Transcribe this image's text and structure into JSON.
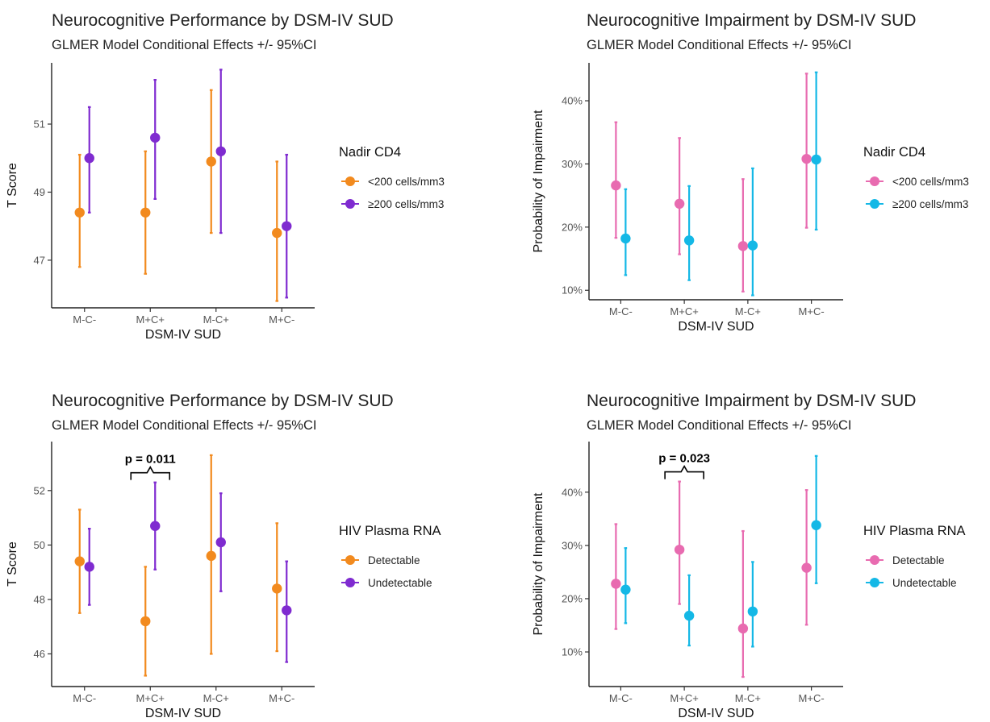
{
  "chart_data": [
    {
      "type": "scatter",
      "title": "Neurocognitive Performance by DSM-IV SUD",
      "subtitle": "GLMER Model Conditional Effects +/- 95%CI",
      "xlabel": "DSM-IV SUD",
      "ylabel": "T Score",
      "categories": [
        "M-C-",
        "M+C+",
        "M-C+",
        "M+C-"
      ],
      "yticks": [
        "47",
        "49",
        "51"
      ],
      "ytick_values": [
        47,
        49,
        51
      ],
      "ylim": [
        45.6,
        52.8
      ],
      "legend_title": "Nadir CD4",
      "legend_position": "right",
      "annotation": null,
      "series": [
        {
          "name": "<200 cells/mm3",
          "color": "#f28a1e",
          "values": [
            48.4,
            48.4,
            49.9,
            47.8
          ],
          "lower": [
            46.8,
            46.6,
            47.8,
            45.8
          ],
          "upper": [
            50.1,
            50.2,
            52.0,
            49.9
          ]
        },
        {
          "name": "≥200 cells/mm3",
          "color": "#7f2bd0",
          "values": [
            50.0,
            50.6,
            50.2,
            48.0
          ],
          "lower": [
            48.4,
            48.8,
            47.8,
            45.9
          ],
          "upper": [
            51.5,
            52.3,
            52.6,
            50.1
          ]
        }
      ]
    },
    {
      "type": "scatter",
      "title": "Neurocognitive Impairment by DSM-IV SUD",
      "subtitle": "GLMER Model Conditional Effects +/- 95%CI",
      "xlabel": "DSM-IV SUD",
      "ylabel": "Probability of Impairment",
      "categories": [
        "M-C-",
        "M+C+",
        "M-C+",
        "M+C-"
      ],
      "yticks": [
        "10%",
        "20%",
        "30%",
        "40%"
      ],
      "ytick_values": [
        10,
        20,
        30,
        40
      ],
      "ylim": [
        8.5,
        46
      ],
      "legend_title": "Nadir CD4",
      "legend_position": "right",
      "annotation": null,
      "series": [
        {
          "name": "<200 cells/mm3",
          "color": "#e86bb0",
          "values": [
            26.6,
            23.7,
            17.0,
            30.8
          ],
          "lower": [
            18.3,
            15.7,
            9.8,
            19.9
          ],
          "upper": [
            36.6,
            34.1,
            27.6,
            44.3
          ]
        },
        {
          "name": "≥200 cells/mm3",
          "color": "#14b8e6",
          "values": [
            18.2,
            17.9,
            17.1,
            30.7
          ],
          "lower": [
            12.4,
            11.6,
            9.2,
            19.6
          ],
          "upper": [
            26.0,
            26.5,
            29.3,
            44.5
          ]
        }
      ]
    },
    {
      "type": "scatter",
      "title": "Neurocognitive Performance by DSM-IV SUD",
      "subtitle": "GLMER Model Conditional Effects +/- 95%CI",
      "xlabel": "DSM-IV SUD",
      "ylabel": "T Score",
      "categories": [
        "M-C-",
        "M+C+",
        "M-C+",
        "M+C-"
      ],
      "yticks": [
        "46",
        "48",
        "50",
        "52"
      ],
      "ytick_values": [
        46,
        48,
        50,
        52
      ],
      "ylim": [
        44.8,
        53.8
      ],
      "legend_title": "HIV Plasma RNA",
      "legend_position": "right",
      "annotation": {
        "text": "p = 0.011",
        "category_index": 1
      },
      "series": [
        {
          "name": "Detectable",
          "color": "#f28a1e",
          "values": [
            49.4,
            47.2,
            49.6,
            48.4
          ],
          "lower": [
            47.5,
            45.2,
            46.0,
            46.1
          ],
          "upper": [
            51.3,
            49.2,
            53.3,
            50.8
          ]
        },
        {
          "name": "Undetectable",
          "color": "#7f2bd0",
          "values": [
            49.2,
            50.7,
            50.1,
            47.6
          ],
          "lower": [
            47.8,
            49.1,
            48.3,
            45.7
          ],
          "upper": [
            50.6,
            52.3,
            51.9,
            49.4
          ]
        }
      ]
    },
    {
      "type": "scatter",
      "title": "Neurocognitive Impairment by DSM-IV SUD",
      "subtitle": "GLMER Model Conditional Effects +/- 95%CI",
      "xlabel": "DSM-IV SUD",
      "ylabel": "Probability of Impairment",
      "categories": [
        "M-C-",
        "M+C+",
        "M-C+",
        "M+C-"
      ],
      "yticks": [
        "10%",
        "20%",
        "30%",
        "40%"
      ],
      "ytick_values": [
        10,
        20,
        30,
        40
      ],
      "ylim": [
        3.5,
        49.5
      ],
      "legend_title": "HIV Plasma RNA",
      "legend_position": "right",
      "annotation": {
        "text": "p = 0.023",
        "category_index": 1
      },
      "series": [
        {
          "name": "Detectable",
          "color": "#e86bb0",
          "values": [
            22.8,
            29.2,
            14.4,
            25.8
          ],
          "lower": [
            14.3,
            19.0,
            5.3,
            15.1
          ],
          "upper": [
            34.0,
            42.0,
            32.7,
            40.4
          ]
        },
        {
          "name": "Undetectable",
          "color": "#14b8e6",
          "values": [
            21.7,
            16.8,
            17.6,
            33.8
          ],
          "lower": [
            15.4,
            11.2,
            11.0,
            22.9
          ],
          "upper": [
            29.5,
            24.4,
            26.9,
            46.8
          ]
        }
      ]
    }
  ]
}
